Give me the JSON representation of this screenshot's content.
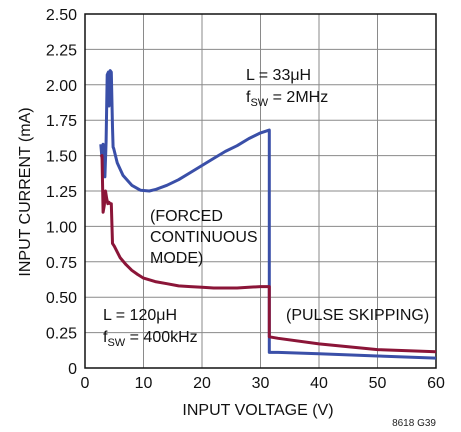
{
  "chart_data": {
    "type": "line",
    "xlabel": "INPUT VOLTAGE (V)",
    "ylabel": "INPUT CURRENT (mA)",
    "xlim": [
      0,
      60
    ],
    "ylim": [
      0,
      2.5
    ],
    "xticks": [
      0,
      10,
      20,
      30,
      40,
      50,
      60
    ],
    "yticks": [
      0,
      0.25,
      0.5,
      0.75,
      1.0,
      1.25,
      1.5,
      1.75,
      2.0,
      2.25,
      2.5
    ],
    "xtick_labels": [
      "0",
      "10",
      "20",
      "30",
      "40",
      "50",
      "60"
    ],
    "ytick_labels": [
      "0",
      "0.25",
      "0.50",
      "0.75",
      "1.00",
      "1.25",
      "1.50",
      "1.75",
      "2.00",
      "2.25",
      "2.50"
    ],
    "grid": true,
    "series": [
      {
        "color": "#3a4fa8",
        "x": [
          2.7,
          2.9,
          3.1,
          3.3,
          3.4,
          3.6,
          3.8,
          4.0,
          4.1,
          4.3,
          4.5,
          4.7,
          4.8,
          4.9,
          5.5,
          6.5,
          8,
          9.5,
          11,
          12,
          14,
          16,
          18,
          20,
          22,
          24,
          26,
          28,
          30,
          31.5,
          31.5,
          33,
          40,
          50,
          60
        ],
        "y": [
          1.58,
          1.48,
          1.58,
          1.45,
          1.35,
          1.6,
          2.07,
          2.09,
          1.85,
          2.1,
          2.09,
          1.7,
          1.56,
          1.55,
          1.45,
          1.36,
          1.29,
          1.255,
          1.25,
          1.26,
          1.29,
          1.33,
          1.38,
          1.43,
          1.48,
          1.53,
          1.57,
          1.62,
          1.66,
          1.68,
          0.11,
          0.11,
          0.1,
          0.085,
          0.07
        ]
      },
      {
        "color": "#8b1538",
        "x": [
          2.7,
          2.9,
          3.1,
          3.3,
          3.5,
          3.7,
          3.9,
          4.1,
          4.3,
          4.5,
          4.7,
          5,
          6,
          7,
          8,
          9,
          10,
          12,
          14,
          16,
          18,
          20,
          22,
          24,
          26,
          28,
          30,
          31.5,
          31.5,
          33,
          40,
          50,
          60
        ],
        "y": [
          1.49,
          1.5,
          1.1,
          1.15,
          1.25,
          1.2,
          1.16,
          1.17,
          1.16,
          1.16,
          0.88,
          0.86,
          0.78,
          0.73,
          0.69,
          0.66,
          0.635,
          0.61,
          0.595,
          0.58,
          0.575,
          0.57,
          0.565,
          0.565,
          0.565,
          0.57,
          0.575,
          0.575,
          0.22,
          0.21,
          0.17,
          0.13,
          0.115
        ]
      }
    ],
    "annotations": [
      {
        "lines": [
          "L = 33μH",
          "fSW = 2MHz"
        ]
      },
      {
        "lines": [
          "(FORCED",
          "CONTINUOUS",
          "MODE)"
        ]
      },
      {
        "lines": [
          "L = 120μH",
          "fSW = 400kHz"
        ]
      },
      {
        "lines": [
          "(PULSE SKIPPING)"
        ]
      }
    ],
    "figure_id": "8618 G39"
  }
}
